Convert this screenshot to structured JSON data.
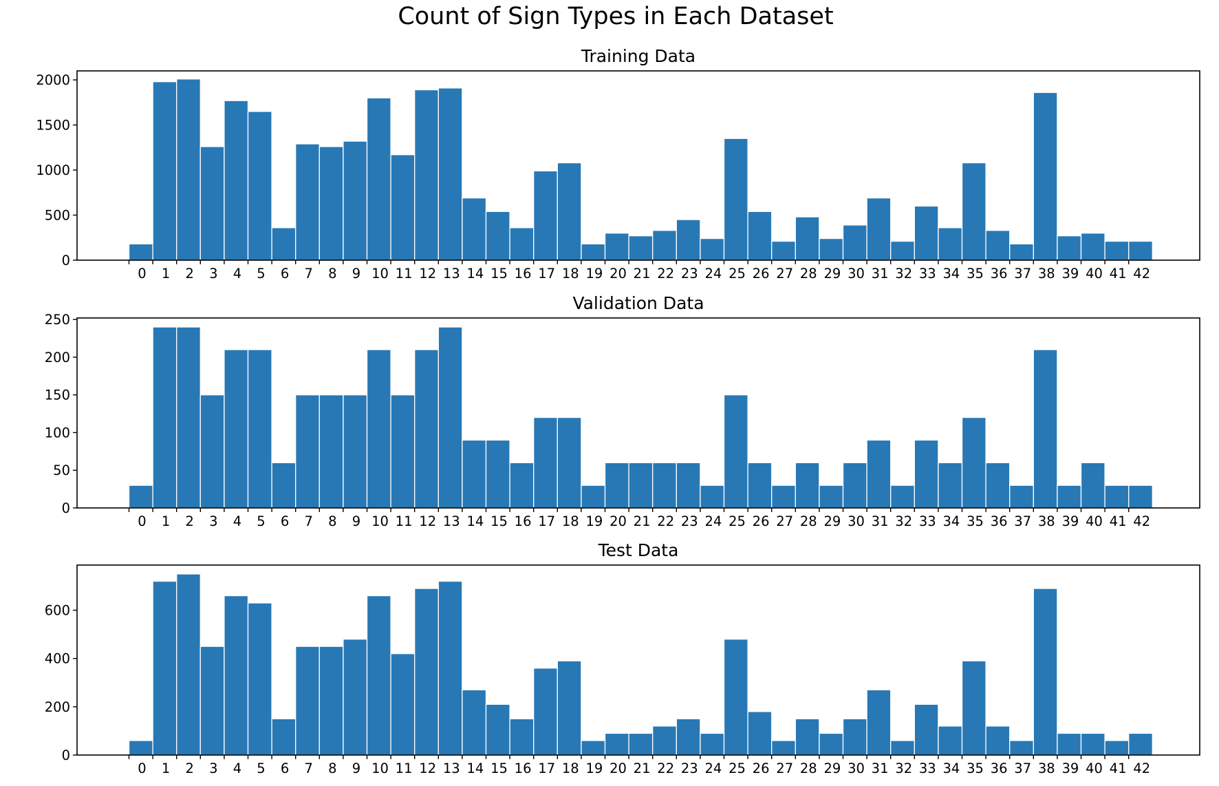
{
  "figure": {
    "title": "Count of Sign Types in Each Dataset",
    "bar_color": "#2878b5",
    "bar_edge_color": "#ffffff",
    "background": "#ffffff"
  },
  "chart_data": [
    {
      "type": "bar",
      "title": "Training Data",
      "xlabel": "",
      "ylabel": "",
      "categories": [
        "0",
        "1",
        "2",
        "3",
        "4",
        "5",
        "6",
        "7",
        "8",
        "9",
        "10",
        "11",
        "12",
        "13",
        "14",
        "15",
        "16",
        "17",
        "18",
        "19",
        "20",
        "21",
        "22",
        "23",
        "24",
        "25",
        "26",
        "27",
        "28",
        "29",
        "30",
        "31",
        "32",
        "33",
        "34",
        "35",
        "36",
        "37",
        "38",
        "39",
        "40",
        "41",
        "42"
      ],
      "values": [
        180,
        1980,
        2010,
        1260,
        1770,
        1650,
        360,
        1290,
        1260,
        1320,
        1800,
        1170,
        1890,
        1910,
        690,
        540,
        360,
        990,
        1080,
        180,
        300,
        270,
        330,
        450,
        240,
        1350,
        540,
        210,
        480,
        240,
        390,
        690,
        210,
        600,
        360,
        1080,
        330,
        180,
        1860,
        270,
        300,
        210,
        210
      ],
      "ylim": [
        0,
        2100
      ],
      "yticks": [
        0,
        500,
        1000,
        1500,
        2000
      ],
      "grid": false,
      "legend": "none"
    },
    {
      "type": "bar",
      "title": "Validation Data",
      "xlabel": "",
      "ylabel": "",
      "categories": [
        "0",
        "1",
        "2",
        "3",
        "4",
        "5",
        "6",
        "7",
        "8",
        "9",
        "10",
        "11",
        "12",
        "13",
        "14",
        "15",
        "16",
        "17",
        "18",
        "19",
        "20",
        "21",
        "22",
        "23",
        "24",
        "25",
        "26",
        "27",
        "28",
        "29",
        "30",
        "31",
        "32",
        "33",
        "34",
        "35",
        "36",
        "37",
        "38",
        "39",
        "40",
        "41",
        "42"
      ],
      "values": [
        30,
        240,
        240,
        150,
        210,
        210,
        60,
        150,
        150,
        150,
        210,
        150,
        210,
        240,
        90,
        90,
        60,
        120,
        120,
        30,
        60,
        60,
        60,
        60,
        30,
        150,
        60,
        30,
        60,
        30,
        60,
        90,
        30,
        90,
        60,
        120,
        60,
        30,
        210,
        30,
        60,
        30,
        30
      ],
      "ylim": [
        0,
        252
      ],
      "yticks": [
        0,
        50,
        100,
        150,
        200,
        250
      ],
      "grid": false,
      "legend": "none"
    },
    {
      "type": "bar",
      "title": "Test Data",
      "xlabel": "",
      "ylabel": "",
      "categories": [
        "0",
        "1",
        "2",
        "3",
        "4",
        "5",
        "6",
        "7",
        "8",
        "9",
        "10",
        "11",
        "12",
        "13",
        "14",
        "15",
        "16",
        "17",
        "18",
        "19",
        "20",
        "21",
        "22",
        "23",
        "24",
        "25",
        "26",
        "27",
        "28",
        "29",
        "30",
        "31",
        "32",
        "33",
        "34",
        "35",
        "36",
        "37",
        "38",
        "39",
        "40",
        "41",
        "42"
      ],
      "values": [
        60,
        720,
        750,
        450,
        660,
        630,
        150,
        450,
        450,
        480,
        660,
        420,
        690,
        720,
        270,
        210,
        150,
        360,
        390,
        60,
        90,
        90,
        120,
        150,
        90,
        480,
        180,
        60,
        150,
        90,
        150,
        270,
        60,
        210,
        120,
        390,
        120,
        60,
        690,
        90,
        90,
        60,
        90
      ],
      "ylim": [
        0,
        787
      ],
      "yticks": [
        0,
        200,
        400,
        600
      ],
      "grid": false,
      "legend": "none"
    }
  ]
}
